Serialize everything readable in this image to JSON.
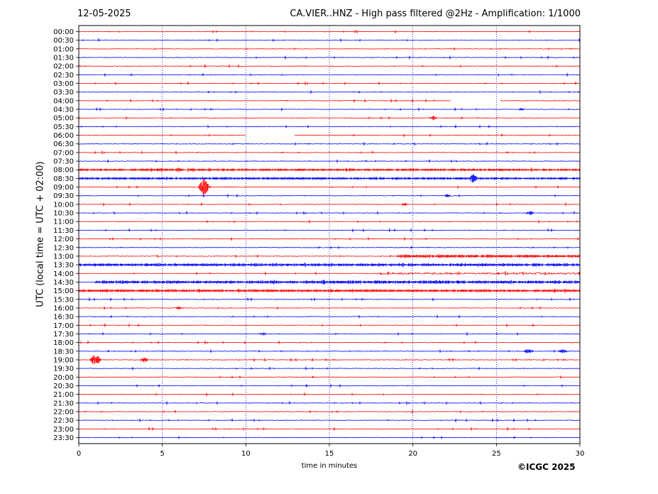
{
  "header": {
    "date": "12-05-2025",
    "title": "CA.VIER..HNZ - High pass filtered @2Hz - Amplification: 1/1000"
  },
  "footer": {
    "copyright": "©ICGC 2025"
  },
  "chart_data": {
    "type": "line",
    "title": "CA.VIER..HNZ - High pass filtered @2Hz - Amplification: 1/1000",
    "xlabel": "time in minutes",
    "ylabel": "UTC (local time = UTC + 02:00)",
    "xlim": [
      0,
      30
    ],
    "x_ticks": [
      "0",
      "5",
      "10",
      "15",
      "20",
      "25",
      "30"
    ],
    "rows": [
      "00:00",
      "00:30",
      "01:00",
      "01:30",
      "02:00",
      "02:30",
      "03:00",
      "03:30",
      "04:00",
      "04:30",
      "05:00",
      "05:30",
      "06:00",
      "06:30",
      "07:00",
      "07:30",
      "08:00",
      "08:30",
      "09:00",
      "09:30",
      "10:00",
      "10:30",
      "11:00",
      "11:30",
      "12:00",
      "12:30",
      "13:00",
      "13:30",
      "14:00",
      "14:30",
      "15:00",
      "15:30",
      "16:00",
      "16:30",
      "17:00",
      "17:30",
      "18:00",
      "18:30",
      "19:00",
      "19:30",
      "20:00",
      "20:30",
      "21:00",
      "21:30",
      "22:00",
      "22:30",
      "23:00",
      "23:30"
    ],
    "trace_colors": [
      "#ff0000",
      "#0000ff"
    ],
    "grid": "vertical dotted at every 5 minutes",
    "data_gaps": [
      {
        "row": "04:00",
        "from_min": 22.3,
        "to_min": 25.2
      },
      {
        "row": "06:00",
        "from_min": 10.0,
        "to_min": 12.9
      }
    ],
    "events": [
      {
        "row": "02:00",
        "minute": 3.0,
        "amplitude": 1
      },
      {
        "row": "04:30",
        "minute": 26.5,
        "amplitude": 2
      },
      {
        "row": "05:00",
        "minute": 21.2,
        "amplitude": 3
      },
      {
        "row": "08:00",
        "minute": 4.8,
        "amplitude": 3
      },
      {
        "row": "08:00",
        "minute": 6.0,
        "amplitude": 3
      },
      {
        "row": "08:30",
        "minute": 23.6,
        "amplitude": 7
      },
      {
        "row": "09:00",
        "minute": 7.5,
        "amplitude": 14
      },
      {
        "row": "09:30",
        "minute": 22.1,
        "amplitude": 2
      },
      {
        "row": "10:00",
        "minute": 19.5,
        "amplitude": 2
      },
      {
        "row": "10:30",
        "minute": 27.0,
        "amplitude": 3
      },
      {
        "row": "14:30",
        "minute": 14.6,
        "amplitude": 4
      },
      {
        "row": "14:30",
        "minute": 16.3,
        "amplitude": 4
      },
      {
        "row": "15:00",
        "minute": 7.3,
        "amplitude": 4
      },
      {
        "row": "16:00",
        "minute": 6.0,
        "amplitude": 2
      },
      {
        "row": "17:30",
        "minute": 11.0,
        "amplitude": 2
      },
      {
        "row": "18:30",
        "minute": 26.9,
        "amplitude": 4
      },
      {
        "row": "18:30",
        "minute": 29.0,
        "amplitude": 3
      },
      {
        "row": "19:00",
        "minute": 1.0,
        "amplitude": 12
      },
      {
        "row": "19:00",
        "minute": 3.9,
        "amplitude": 4
      }
    ],
    "noisy_segments": [
      {
        "row": "08:00",
        "from_min": 0,
        "to_min": 30,
        "level": 1.3
      },
      {
        "row": "08:30",
        "from_min": 0,
        "to_min": 30,
        "level": 1.3
      },
      {
        "row": "13:00",
        "from_min": 19,
        "to_min": 30,
        "level": 1.8
      },
      {
        "row": "13:30",
        "from_min": 0,
        "to_min": 30,
        "level": 1.8
      },
      {
        "row": "14:00",
        "from_min": 18,
        "to_min": 30,
        "level": 1.2
      },
      {
        "row": "14:30",
        "from_min": 1,
        "to_min": 30,
        "level": 2.0
      },
      {
        "row": "15:00",
        "from_min": 0,
        "to_min": 30,
        "level": 1.6
      }
    ]
  }
}
